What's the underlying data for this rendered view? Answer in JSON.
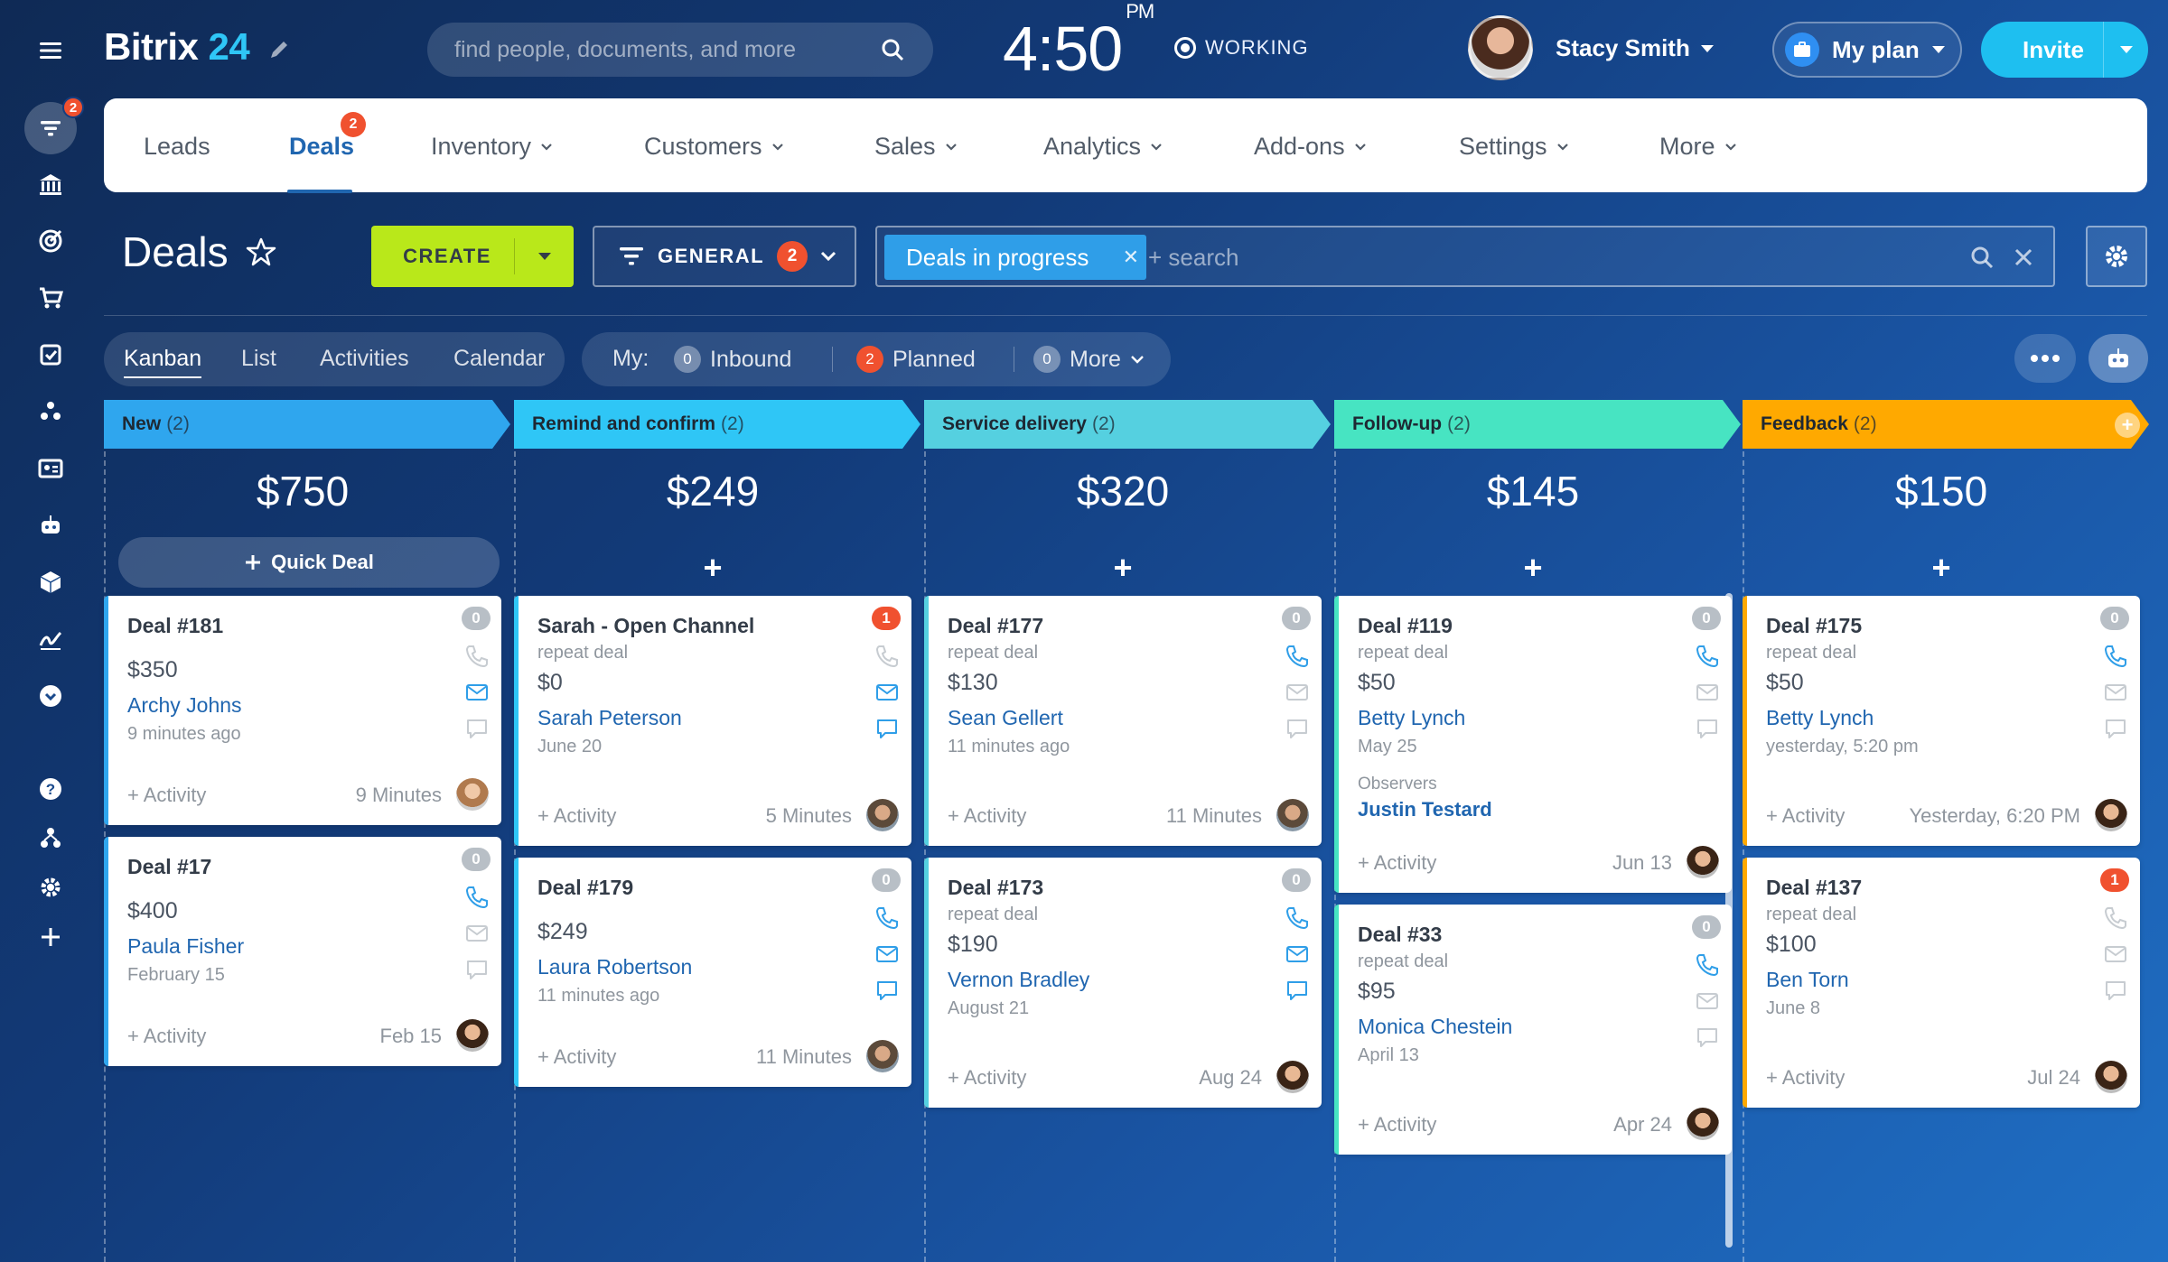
{
  "app": {
    "logo_text": "Bitrix",
    "logo_num": "24"
  },
  "search": {
    "placeholder": "find people, documents, and more"
  },
  "clock": {
    "time": "4:50",
    "ampm": "PM",
    "status": "WORKING"
  },
  "user": {
    "name": "Stacy Smith"
  },
  "plan": {
    "label": "My plan"
  },
  "invite": {
    "label": "Invite"
  },
  "rail": {
    "badge": "2"
  },
  "nav": {
    "items": [
      {
        "label": "Leads"
      },
      {
        "label": "Deals",
        "badge": "2"
      },
      {
        "label": "Inventory"
      },
      {
        "label": "Customers"
      },
      {
        "label": "Sales"
      },
      {
        "label": "Analytics"
      },
      {
        "label": "Add-ons"
      },
      {
        "label": "Settings"
      },
      {
        "label": "More"
      }
    ]
  },
  "toolbar": {
    "title": "Deals",
    "create_label": "CREATE",
    "general_label": "GENERAL",
    "general_count": "2",
    "filter_chip": "Deals in progress",
    "filter_search_placeholder": "+ search"
  },
  "views": {
    "tabs": [
      "Kanban",
      "List",
      "Activities",
      "Calendar"
    ],
    "my_label": "My:",
    "counters": [
      {
        "count": "0",
        "label": "Inbound"
      },
      {
        "count": "2",
        "label": "Planned"
      },
      {
        "count": "0",
        "label": "More"
      }
    ]
  },
  "quick_deal": "Quick Deal",
  "plus": "+",
  "columns": [
    {
      "name": "New",
      "count": "(2)",
      "total": "$750",
      "color": "#2fa6ee",
      "cards": [
        {
          "title": "Deal #181",
          "amount": "$350",
          "client": "Archy Johns",
          "date": "9 minutes ago",
          "activity": "+ Activity",
          "since": "9 Minutes",
          "badge": "0"
        },
        {
          "title": "Deal #17",
          "amount": "$400",
          "client": "Paula Fisher",
          "date": "February 15",
          "activity": "+ Activity",
          "since": "Feb 15",
          "badge": "0"
        }
      ]
    },
    {
      "name": "Remind and confirm",
      "count": "(2)",
      "total": "$249",
      "color": "#2fc6f6",
      "cards": [
        {
          "title": "Sarah - Open Channel",
          "sub": "repeat deal",
          "amount": "$0",
          "client": "Sarah Peterson",
          "date": "June 20",
          "activity": "+ Activity",
          "since": "5 Minutes",
          "badge": "1"
        },
        {
          "title": "Deal #179",
          "amount": "$249",
          "client": "Laura Robertson",
          "date": "11 minutes ago",
          "activity": "+ Activity",
          "since": "11 Minutes",
          "badge": "0"
        }
      ]
    },
    {
      "name": "Service delivery",
      "count": "(2)",
      "total": "$320",
      "color": "#55d0e0",
      "cards": [
        {
          "title": "Deal #177",
          "sub": "repeat deal",
          "amount": "$130",
          "client": "Sean Gellert",
          "date": "11 minutes ago",
          "activity": "+ Activity",
          "since": "11 Minutes",
          "badge": "0"
        },
        {
          "title": "Deal #173",
          "sub": "repeat deal",
          "amount": "$190",
          "client": "Vernon Bradley",
          "date": "August 21",
          "activity": "+ Activity",
          "since": "Aug 24",
          "badge": "0"
        }
      ]
    },
    {
      "name": "Follow-up",
      "count": "(2)",
      "total": "$145",
      "color": "#47e4c2",
      "cards": [
        {
          "title": "Deal #119",
          "sub": "repeat deal",
          "amount": "$50",
          "client": "Betty Lynch",
          "date": "May 25",
          "observers_label": "Observers",
          "observer": "Justin Testard",
          "activity": "+ Activity",
          "since": "Jun 13",
          "badge": "0"
        },
        {
          "title": "Deal #33",
          "sub": "repeat deal",
          "amount": "$95",
          "client": "Monica Chestein",
          "date": "April 13",
          "activity": "+ Activity",
          "since": "Apr 24",
          "badge": "0"
        }
      ]
    },
    {
      "name": "Feedback",
      "count": "(2)",
      "total": "$150",
      "color": "#ffa900",
      "cards": [
        {
          "title": "Deal #175",
          "sub": "repeat deal",
          "amount": "$50",
          "client": "Betty Lynch",
          "date": "yesterday, 5:20 pm",
          "activity": "+ Activity",
          "since": "Yesterday, 6:20 PM",
          "badge": "0"
        },
        {
          "title": "Deal #137",
          "sub": "repeat deal",
          "amount": "$100",
          "client": "Ben Torn",
          "date": "June 8",
          "activity": "+ Activity",
          "since": "Jul 24",
          "badge": "1"
        }
      ]
    }
  ]
}
